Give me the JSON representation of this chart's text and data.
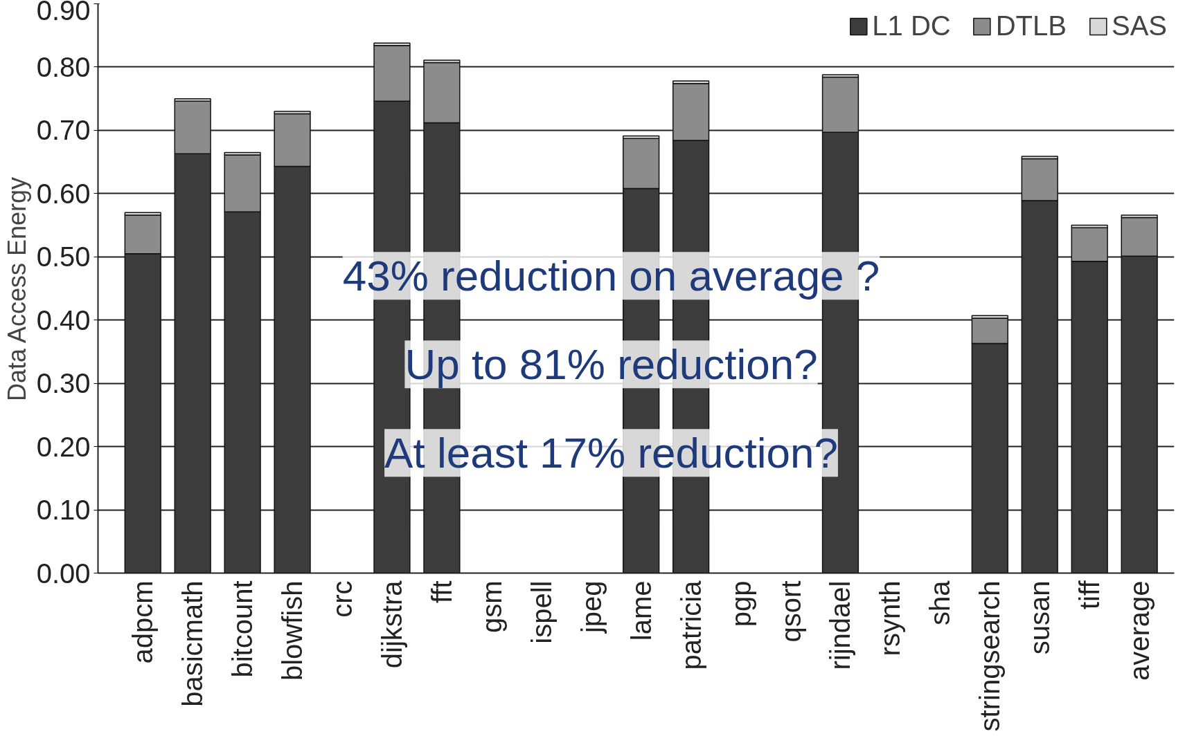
{
  "chart_data": {
    "type": "bar",
    "stacked": true,
    "ylabel": "Data Access Energy",
    "categories": [
      "adpcm",
      "basicmath",
      "bitcount",
      "blowfish",
      "crc",
      "dijkstra",
      "fft",
      "gsm",
      "ispell",
      "jpeg",
      "lame",
      "patricia",
      "pgp",
      "qsort",
      "rijndael",
      "rsynth",
      "sha",
      "stringsearch",
      "susan",
      "tiff",
      "average"
    ],
    "series": [
      {
        "name": "L1 DC",
        "color": "#3c3c3c",
        "values": [
          0.505,
          0.663,
          0.571,
          0.643,
          null,
          0.746,
          0.712,
          null,
          null,
          null,
          0.608,
          0.684,
          null,
          null,
          0.697,
          null,
          null,
          0.363,
          0.589,
          0.493,
          0.501
        ]
      },
      {
        "name": "DTLB",
        "color": "#8c8c8c",
        "values": [
          0.061,
          0.083,
          0.09,
          0.083,
          null,
          0.088,
          0.095,
          null,
          null,
          null,
          0.079,
          0.09,
          null,
          null,
          0.087,
          null,
          null,
          0.04,
          0.066,
          0.053,
          0.061
        ]
      },
      {
        "name": "SAS",
        "color": "#d9d9d9",
        "values": [
          0.004,
          0.004,
          0.004,
          0.004,
          null,
          0.004,
          0.004,
          null,
          null,
          null,
          0.004,
          0.004,
          null,
          null,
          0.004,
          null,
          null,
          0.004,
          0.004,
          0.004,
          0.004
        ]
      }
    ],
    "ylim": [
      0,
      0.9
    ],
    "yticks": [
      {
        "value": 0,
        "label": "0.00"
      },
      {
        "value": 0.1,
        "label": "0.10"
      },
      {
        "value": 0.2,
        "label": "0.20"
      },
      {
        "value": 0.3,
        "label": "0.30"
      },
      {
        "value": 0.4,
        "label": "0.40"
      },
      {
        "value": 0.5,
        "label": "0.50"
      },
      {
        "value": 0.6,
        "label": "0.60"
      },
      {
        "value": 0.7,
        "label": "0.70"
      },
      {
        "value": 0.8,
        "label": "0.80"
      },
      {
        "value": 0.9,
        "label": "0.90"
      }
    ],
    "grid": "y",
    "legend": "top right",
    "annotations": [
      "43% reduction on average ?",
      "Up to 81% reduction?",
      "At least 17% reduction?"
    ]
  }
}
